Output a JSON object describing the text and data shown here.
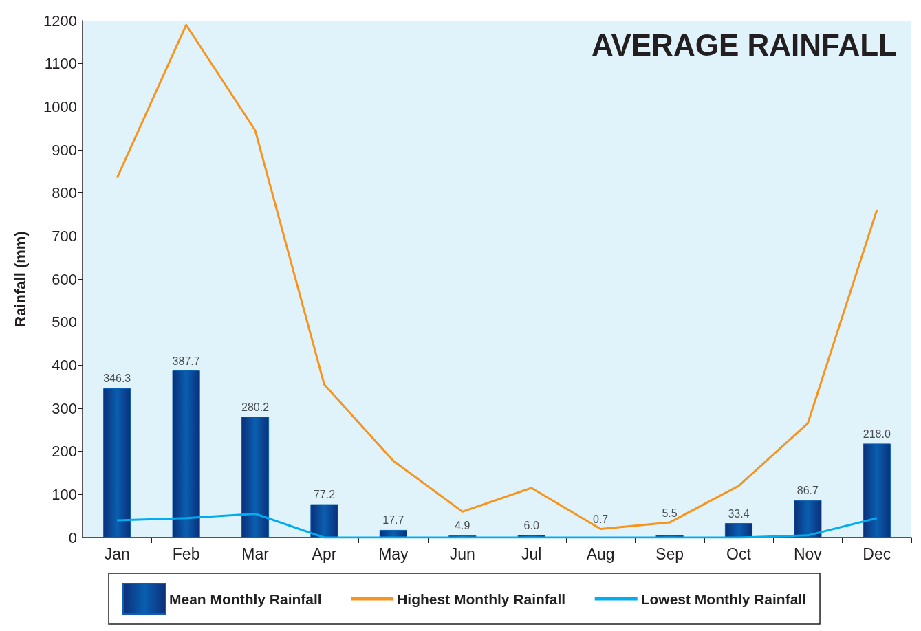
{
  "chart_data": {
    "type": "bar",
    "title": "AVERAGE RAINFALL",
    "ylabel": "Rainfall (mm)",
    "categories": [
      "Jan",
      "Feb",
      "Mar",
      "Apr",
      "May",
      "Jun",
      "Jul",
      "Aug",
      "Sep",
      "Oct",
      "Nov",
      "Dec"
    ],
    "series": [
      {
        "name": "Mean Monthly Rainfall",
        "color": "#0a5fb0",
        "values": [
          346.3,
          387.7,
          280.2,
          77.2,
          17.7,
          4.9,
          6.0,
          0.7,
          5.5,
          33.4,
          86.7,
          218.0
        ],
        "value_labels": [
          "346.3",
          "387.7",
          "280.2",
          "77.2",
          "17.7",
          "4.9",
          "6.0",
          "0.7",
          "5.5",
          "33.4",
          "86.7",
          "218.0"
        ]
      },
      {
        "name": "Highest Monthly Rainfall",
        "type": "line",
        "color": "#f7941d",
        "values": [
          835,
          1190,
          945,
          355,
          178,
          60,
          115,
          20,
          35,
          120,
          265,
          760
        ]
      },
      {
        "name": "Lowest Monthly Rainfall",
        "type": "line",
        "color": "#00aeef",
        "values": [
          40,
          45,
          55,
          0,
          0,
          0,
          0,
          0,
          0,
          0,
          5,
          45
        ]
      }
    ],
    "ylim": [
      0,
      1200
    ],
    "yticks": [
      0,
      100,
      200,
      300,
      400,
      500,
      600,
      700,
      800,
      900,
      1000,
      1100,
      1200
    ],
    "grid": false,
    "legend": "bottom",
    "marker": "none",
    "line_style": "solid"
  }
}
